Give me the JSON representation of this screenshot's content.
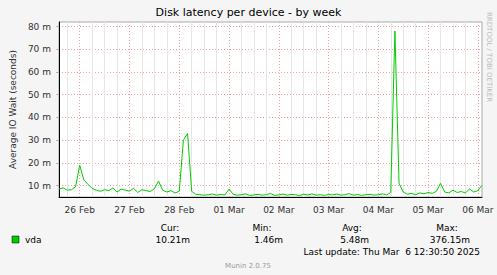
{
  "chart_data": {
    "type": "line",
    "title": "Disk latency per device - by week",
    "y_label": "Average IO Wait (seconds)",
    "categories": [
      null,
      null,
      null,
      null,
      null,
      "26 Feb",
      null,
      null,
      null,
      null,
      null,
      null,
      null,
      null,
      null,
      null,
      null,
      "27 Feb",
      null,
      null,
      null,
      null,
      null,
      null,
      null,
      null,
      null,
      null,
      null,
      "28 Feb",
      null,
      null,
      null,
      null,
      null,
      null,
      null,
      null,
      null,
      null,
      null,
      "01 Mar",
      null,
      null,
      null,
      null,
      null,
      null,
      null,
      null,
      null,
      null,
      null,
      "02 Mar",
      null,
      null,
      null,
      null,
      null,
      null,
      null,
      null,
      null,
      null,
      null,
      "03 Mar",
      null,
      null,
      null,
      null,
      null,
      null,
      null,
      null,
      null,
      null,
      null,
      "04 Mar",
      null,
      null,
      null,
      null,
      null,
      null,
      null,
      null,
      null,
      null,
      null,
      "05 Mar",
      null,
      null,
      null,
      null,
      null,
      null,
      null,
      null,
      null,
      null,
      null,
      "06 Mar",
      null
    ],
    "series": [
      {
        "name": "vda",
        "color": "#00cc00",
        "values": [
          0.0085,
          0.009,
          0.008,
          0.0082,
          0.0095,
          0.019,
          0.0125,
          0.0105,
          0.0088,
          0.008,
          0.0075,
          0.0082,
          0.0078,
          0.009,
          0.0072,
          0.0085,
          0.008,
          0.0076,
          0.0088,
          0.007,
          0.0082,
          0.0078,
          0.0074,
          0.0086,
          0.012,
          0.008,
          0.0072,
          0.0078,
          0.0068,
          0.0075,
          0.03,
          0.033,
          0.0075,
          0.0062,
          0.006,
          0.0058,
          0.006,
          0.0063,
          0.0058,
          0.0061,
          0.0059,
          0.0085,
          0.0062,
          0.0058,
          0.006,
          0.0064,
          0.0057,
          0.0059,
          0.0062,
          0.0058,
          0.006,
          0.0066,
          0.0057,
          0.0059,
          0.0063,
          0.0058,
          0.0061,
          0.006,
          0.0056,
          0.0062,
          0.0059,
          0.0064,
          0.0058,
          0.006,
          0.0057,
          0.0061,
          0.0059,
          0.0063,
          0.0058,
          0.006,
          0.0065,
          0.0058,
          0.0061,
          0.0057,
          0.006,
          0.0062,
          0.0058,
          0.006,
          0.0064,
          0.0059,
          0.007,
          0.078,
          0.011,
          0.0072,
          0.0062,
          0.0066,
          0.006,
          0.0068,
          0.0064,
          0.007,
          0.0066,
          0.0075,
          0.011,
          0.0072,
          0.0068,
          0.008,
          0.007,
          0.0074,
          0.0068,
          0.0085,
          0.0072,
          0.0078,
          0.0102
        ]
      }
    ],
    "ylim": [
      0.005,
      0.082
    ],
    "yticks": [
      {
        "value": 0.01,
        "label": "10 m"
      },
      {
        "value": 0.02,
        "label": "20 m"
      },
      {
        "value": 0.03,
        "label": "30 m"
      },
      {
        "value": 0.04,
        "label": "40 m"
      },
      {
        "value": 0.05,
        "label": "50 m"
      },
      {
        "value": 0.06,
        "label": "60 m"
      },
      {
        "value": 0.07,
        "label": "70 m"
      },
      {
        "value": 0.08,
        "label": "80 m"
      }
    ],
    "grid": true,
    "stats": [
      {
        "label": "Cur:",
        "value": "10.21m"
      },
      {
        "label": "Min:",
        "value": "1.46m"
      },
      {
        "label": "Avg:",
        "value": "5.48m"
      },
      {
        "label": "Max:",
        "value": "376.15m"
      }
    ],
    "last_update": "Last update: Thu Mar  6 12:30:50 2025",
    "footer": "Munin 2.0.75",
    "watermark": "RRDTOOL / TOBI OETIKER"
  }
}
